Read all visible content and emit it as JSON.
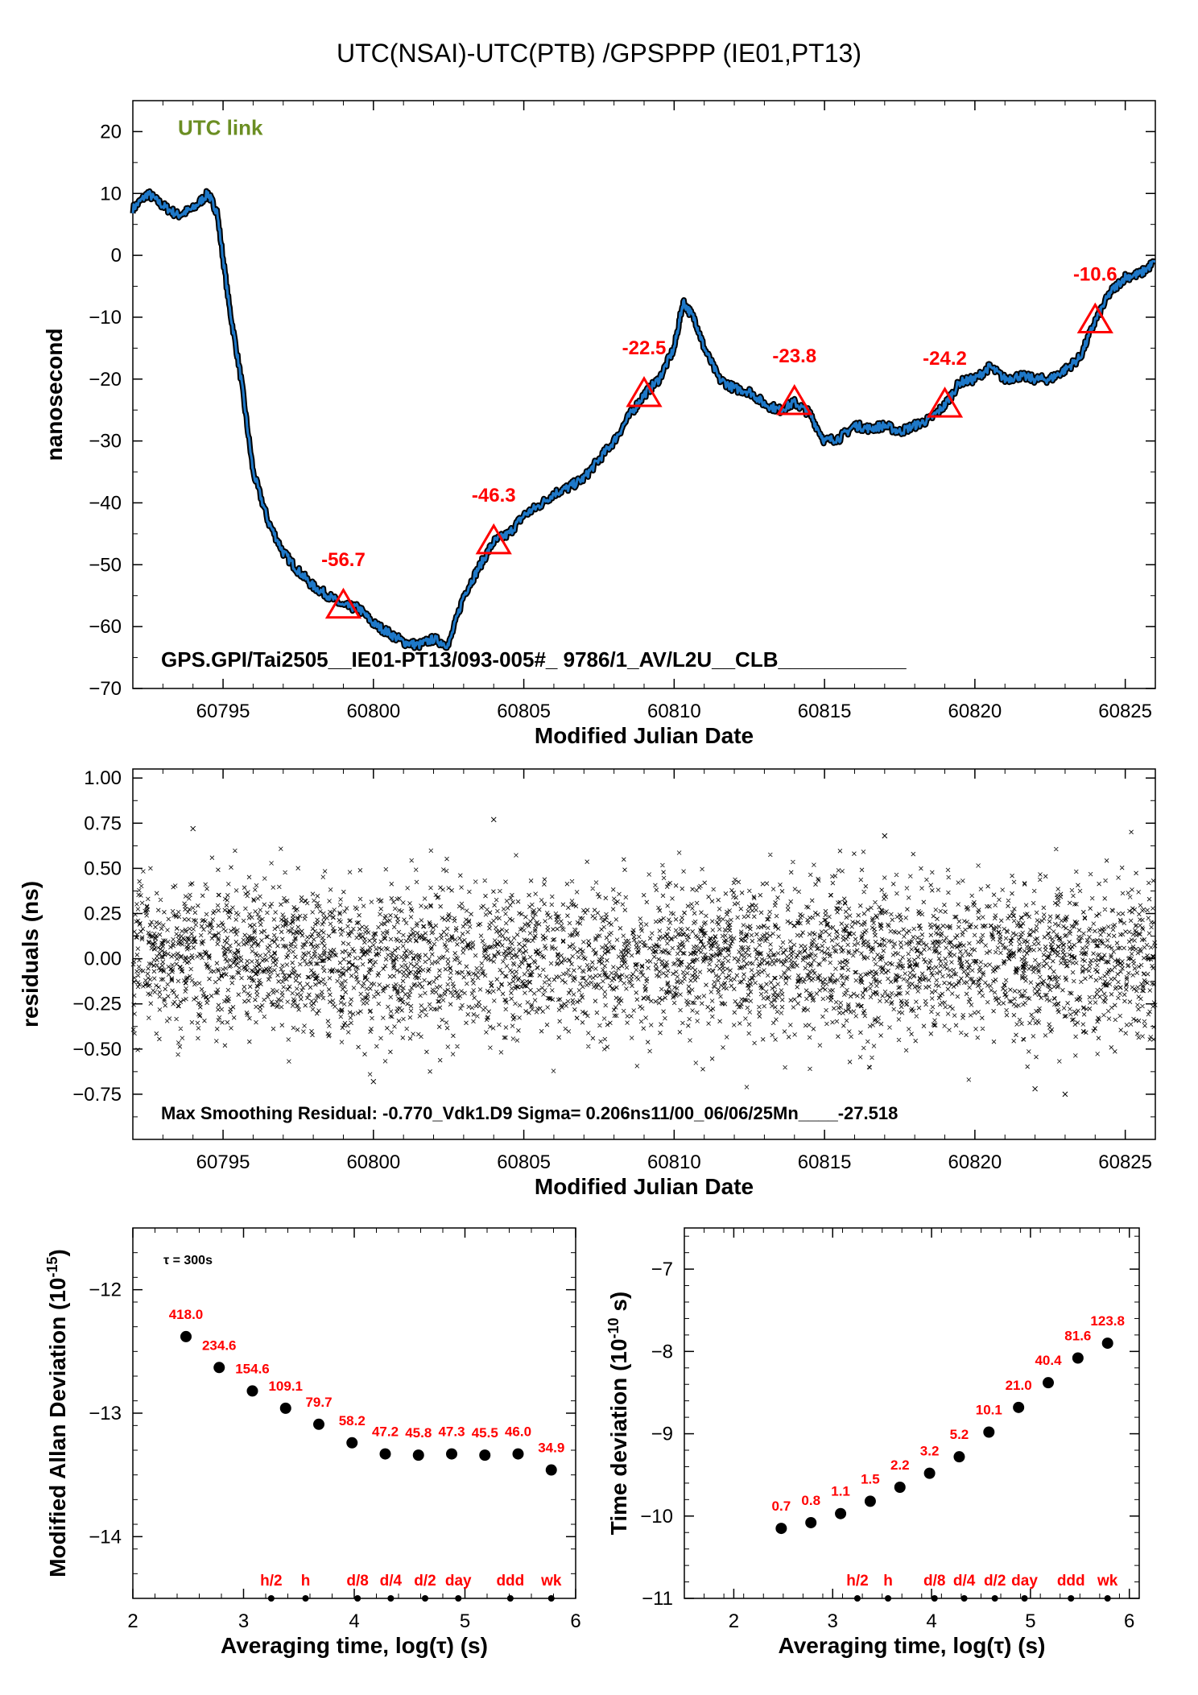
{
  "title": "UTC(NSAI)-UTC(PTB)  /GPSPPP  (IE01,PT13)",
  "chart_data": [
    {
      "type": "line",
      "name": "time-transfer",
      "legend": "UTC link",
      "legend_color": "#6b8e23",
      "series_color": "#1e78c8",
      "xlabel": "Modified Julian Date",
      "ylabel": "nanosecond",
      "xlim": [
        60792,
        60826
      ],
      "ylim": [
        -70,
        25
      ],
      "xticks": [
        60795,
        60800,
        60805,
        60810,
        60815,
        60820,
        60825
      ],
      "yticks": [
        20,
        10,
        0,
        -10,
        -20,
        -30,
        -40,
        -50,
        -60,
        -70
      ],
      "ytick_labels": [
        "20",
        "10",
        "0",
        "−10",
        "−20",
        "−30",
        "−40",
        "−50",
        "−60",
        "−70"
      ],
      "x": [
        60792.0,
        60792.5,
        60793.0,
        60793.5,
        60794.0,
        60794.5,
        60794.8,
        60795.2,
        60795.6,
        60796.0,
        60796.5,
        60797.0,
        60797.5,
        60798.0,
        60798.5,
        60799.0,
        60799.5,
        60800.0,
        60800.5,
        60801.0,
        60801.5,
        60802.0,
        60802.5,
        60803.0,
        60803.5,
        60804.0,
        60804.5,
        60805.0,
        60805.5,
        60806.0,
        60806.5,
        60807.0,
        60807.5,
        60808.0,
        60808.5,
        60809.0,
        60809.5,
        60810.0,
        60810.3,
        60810.7,
        60811.0,
        60811.5,
        60812.0,
        60812.5,
        60813.0,
        60813.5,
        60814.0,
        60814.5,
        60815.0,
        60815.5,
        60816.0,
        60816.5,
        60817.0,
        60817.5,
        60818.0,
        60818.5,
        60819.0,
        60819.5,
        60820.0,
        60820.5,
        60821.0,
        60821.5,
        60822.0,
        60822.5,
        60823.0,
        60823.5,
        60824.0,
        60824.5,
        60825.0,
        60825.5,
        60826.0
      ],
      "y": [
        7.5,
        10.0,
        8.0,
        6.5,
        7.5,
        10.0,
        7.0,
        -8.0,
        -20.0,
        -35.0,
        -43.0,
        -48.0,
        -51.0,
        -53.5,
        -55.0,
        -56.7,
        -57.0,
        -59.5,
        -61.0,
        -62.5,
        -63.0,
        -62.0,
        -63.0,
        -55.0,
        -50.5,
        -46.3,
        -45.0,
        -42.0,
        -40.5,
        -38.5,
        -37.5,
        -36.0,
        -33.0,
        -30.0,
        -26.0,
        -22.5,
        -20.0,
        -15.0,
        -7.5,
        -10.5,
        -15.0,
        -20.0,
        -21.5,
        -22.0,
        -24.0,
        -25.0,
        -23.8,
        -25.5,
        -30.0,
        -29.5,
        -27.5,
        -28.0,
        -27.5,
        -28.5,
        -27.5,
        -26.5,
        -24.2,
        -20.5,
        -20.0,
        -18.0,
        -20.0,
        -19.5,
        -20.0,
        -20.0,
        -18.5,
        -16.5,
        -10.6,
        -6.0,
        -3.5,
        -3.0,
        -1.0
      ],
      "markers": [
        {
          "x": 60799,
          "y": -56.7,
          "label": "-56.7"
        },
        {
          "x": 60804,
          "y": -46.3,
          "label": "-46.3"
        },
        {
          "x": 60809,
          "y": -22.5,
          "label": "-22.5"
        },
        {
          "x": 60814,
          "y": -23.8,
          "label": "-23.8"
        },
        {
          "x": 60819,
          "y": -24.2,
          "label": "-24.2"
        },
        {
          "x": 60824,
          "y": -10.6,
          "label": "-10.6"
        }
      ],
      "annotation": "GPS.GPI/Tai2505__IE01-PT13/093-005#_  9786/1_AV/L2U__CLB___________"
    },
    {
      "type": "scatter",
      "name": "residuals",
      "xlabel": "Modified Julian Date",
      "ylabel": "residuals (ns)",
      "xlim": [
        60792,
        60826
      ],
      "ylim": [
        -1.0,
        1.05
      ],
      "xticks": [
        60795,
        60800,
        60805,
        60810,
        60815,
        60820,
        60825
      ],
      "yticks": [
        1.0,
        0.75,
        0.5,
        0.25,
        0.0,
        -0.25,
        -0.5,
        -0.75
      ],
      "ytick_labels": [
        "1.00",
        "0.75",
        "0.50",
        "0.25",
        "0.00",
        "−0.25",
        "−0.50",
        "−0.75"
      ],
      "sigma_ns": 0.206,
      "max_abs_residual_ns": 0.77,
      "outliers": [
        {
          "x": 60794.0,
          "y": 0.72
        },
        {
          "x": 60804.0,
          "y": 0.77
        },
        {
          "x": 60817.0,
          "y": 0.68
        },
        {
          "x": 60822.0,
          "y": -0.72
        },
        {
          "x": 60823.0,
          "y": -0.75
        },
        {
          "x": 60800.0,
          "y": -0.68
        }
      ],
      "annotation": "Max Smoothing Residual: -0.770_Vdk1.D9  Sigma= 0.206ns11/00_06/06/25Mn____-27.518"
    },
    {
      "type": "scatter",
      "name": "modified-allan-deviation",
      "note": "τ = 300s",
      "xlabel": "Averaging time, log(τ) (s)",
      "ylabel": "Modified Allan Deviation (10",
      "ylabel_sup": "-15",
      "ylabel_end": ")",
      "xlim": [
        2,
        6
      ],
      "ylim": [
        -14.5,
        -11.5
      ],
      "xticks": [
        2,
        3,
        4,
        5,
        6
      ],
      "yticks": [
        -12,
        -13,
        -14
      ],
      "ytick_labels": [
        "−12",
        "−13",
        "−14"
      ],
      "x": [
        2.48,
        2.78,
        3.08,
        3.38,
        3.68,
        3.98,
        4.28,
        4.58,
        4.88,
        5.18,
        5.48,
        5.78
      ],
      "y": [
        -12.38,
        -12.63,
        -12.82,
        -12.96,
        -13.09,
        -13.24,
        -13.33,
        -13.34,
        -13.33,
        -13.34,
        -13.33,
        -13.46
      ],
      "labels": [
        "418.0",
        "234.6",
        "154.6",
        "109.1",
        "79.7",
        "58.2",
        "47.2",
        "45.8",
        "47.3",
        "45.5",
        "46.0",
        "34.9"
      ],
      "interval_marks": [
        {
          "x": 3.25,
          "label": "h/2"
        },
        {
          "x": 3.56,
          "label": "h"
        },
        {
          "x": 4.03,
          "label": "d/8"
        },
        {
          "x": 4.33,
          "label": "d/4"
        },
        {
          "x": 4.64,
          "label": "d/2"
        },
        {
          "x": 4.94,
          "label": "day"
        },
        {
          "x": 5.41,
          "label": "ddd"
        },
        {
          "x": 5.78,
          "label": "wk"
        }
      ]
    },
    {
      "type": "scatter",
      "name": "time-deviation",
      "xlabel": "Averaging time, log(τ) (s)",
      "ylabel": "Time deviation (10",
      "ylabel_sup": "-10",
      "ylabel_end": " s)",
      "xlim": [
        1.5,
        6.1
      ],
      "ylim": [
        -11,
        -6.5
      ],
      "xticks": [
        2,
        3,
        4,
        5,
        6
      ],
      "yticks": [
        -7,
        -8,
        -9,
        -10,
        -11
      ],
      "ytick_labels": [
        "−7",
        "−8",
        "−9",
        "−10",
        "−11"
      ],
      "x": [
        2.48,
        2.78,
        3.08,
        3.38,
        3.68,
        3.98,
        4.28,
        4.58,
        4.88,
        5.18,
        5.48,
        5.78
      ],
      "y": [
        -10.15,
        -10.08,
        -9.97,
        -9.82,
        -9.65,
        -9.48,
        -9.28,
        -8.98,
        -8.68,
        -8.38,
        -8.08,
        -7.9
      ],
      "labels": [
        "0.7",
        "0.8",
        "1.1",
        "1.5",
        "2.2",
        "3.2",
        "5.2",
        "10.1",
        "21.0",
        "40.4",
        "81.6",
        "123.8"
      ],
      "interval_marks": [
        {
          "x": 3.25,
          "label": "h/2"
        },
        {
          "x": 3.56,
          "label": "h"
        },
        {
          "x": 4.03,
          "label": "d/8"
        },
        {
          "x": 4.33,
          "label": "d/4"
        },
        {
          "x": 4.64,
          "label": "d/2"
        },
        {
          "x": 4.94,
          "label": "day"
        },
        {
          "x": 5.41,
          "label": "ddd"
        },
        {
          "x": 5.78,
          "label": "wk"
        }
      ]
    }
  ]
}
